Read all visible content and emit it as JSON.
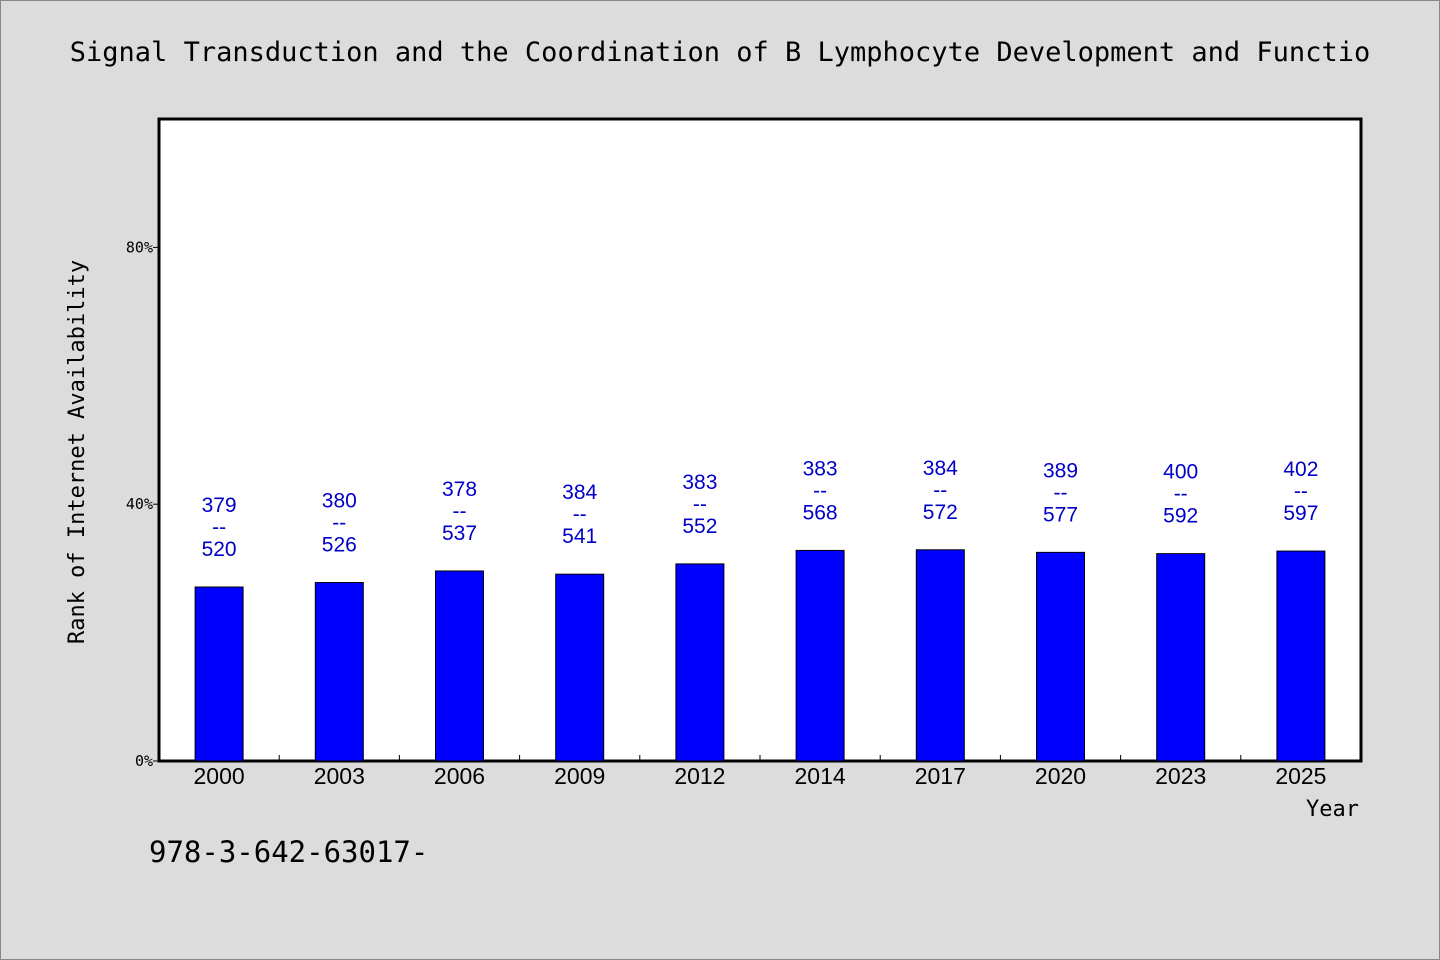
{
  "chart_data": {
    "type": "bar",
    "title": "Signal Transduction and the Coordination of B Lymphocyte Development and Functio",
    "xlabel": "Year",
    "ylabel": "Rank of Internet Availability",
    "categories": [
      "2000",
      "2003",
      "2006",
      "2009",
      "2012",
      "2014",
      "2017",
      "2020",
      "2023",
      "2025"
    ],
    "values": [
      0.271,
      0.278,
      0.296,
      0.291,
      0.307,
      0.328,
      0.329,
      0.325,
      0.323,
      0.327
    ],
    "data_labels": [
      [
        "379",
        "--",
        "520"
      ],
      [
        "380",
        "--",
        "526"
      ],
      [
        "378",
        "--",
        "537"
      ],
      [
        "384",
        "--",
        "541"
      ],
      [
        "383",
        "--",
        "552"
      ],
      [
        "383",
        "--",
        "568"
      ],
      [
        "384",
        "--",
        "572"
      ],
      [
        "389",
        "--",
        "577"
      ],
      [
        "400",
        "--",
        "592"
      ],
      [
        "402",
        "--",
        "597"
      ]
    ],
    "ylim": [
      0,
      1
    ],
    "yticks": [
      0,
      0.4,
      0.8
    ],
    "ytick_labels": [
      "0%",
      "40%",
      "80%"
    ],
    "grid": false,
    "bar_color": "#0000ff",
    "label_color": "#0000c8",
    "background": "#dcdcdc",
    "plot_background": "#ffffff"
  },
  "footnote": "978-3-642-63017-"
}
